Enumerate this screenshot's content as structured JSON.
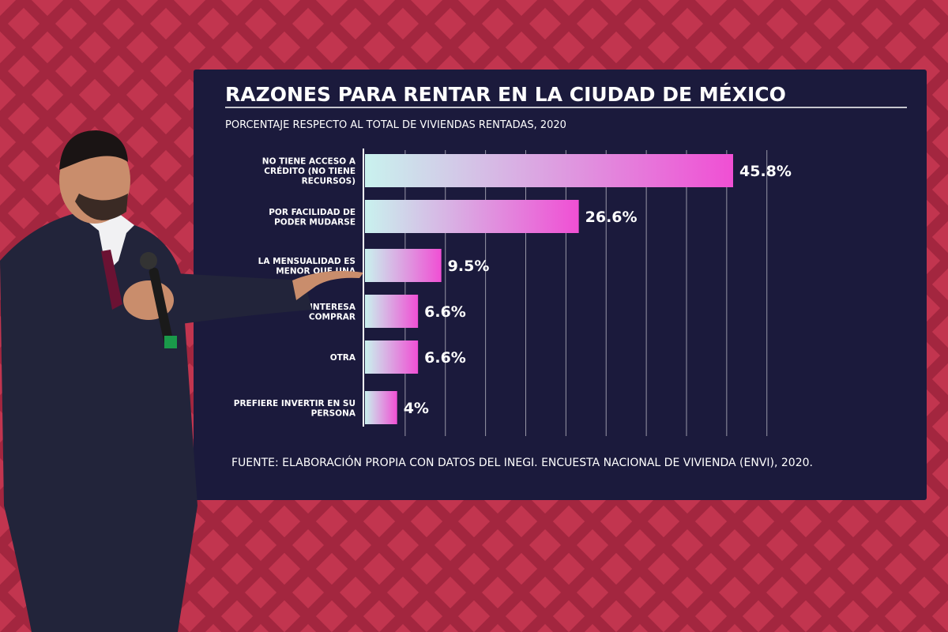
{
  "chart_data": {
    "type": "bar",
    "orientation": "horizontal",
    "title": "RAZONES PARA RENTAR EN LA CIUDAD DE MÉXICO",
    "subtitle": "PORCENTAJE RESPECTO AL TOTAL DE VIVIENDAS RENTADAS, 2020",
    "categories": [
      [
        "NO TIENE ACCESO A",
        "CRÉDITO (NO TIENE",
        "RECURSOS)"
      ],
      [
        "POR FACILIDAD DE",
        "PODER MUDARSE"
      ],
      [
        "LA MENSUALIDAD ES",
        "MENOR QUE UNA"
      ],
      [
        "INTERESA",
        "COMPRAR"
      ],
      [
        "OTRA"
      ],
      [
        "PREFIERE INVERTIR EN SU",
        "PERSONA"
      ]
    ],
    "values": [
      45.8,
      26.6,
      9.5,
      6.6,
      6.6,
      4
    ],
    "value_labels": [
      "45.8%",
      "26.6%",
      "9.5%",
      "6.6%",
      "6.6%",
      "4%"
    ],
    "xlim": [
      0,
      50
    ],
    "grid": true,
    "source": "FUENTE: ELABORACIÓN PROPIA CON DATOS DEL INEGI. ENCUESTA NACIONAL DE VIVIENDA (ENVI), 2020."
  },
  "colors": {
    "wall": "#c2354f",
    "wall_pattern": "#a3263f",
    "screen": "#1b1a3c",
    "text": "#ffffff",
    "bar_start": "#c9f2ee",
    "bar_end": "#f04fd4",
    "suit": "#22243a",
    "tie": "#6b1233",
    "skin": "#c98d6c"
  }
}
